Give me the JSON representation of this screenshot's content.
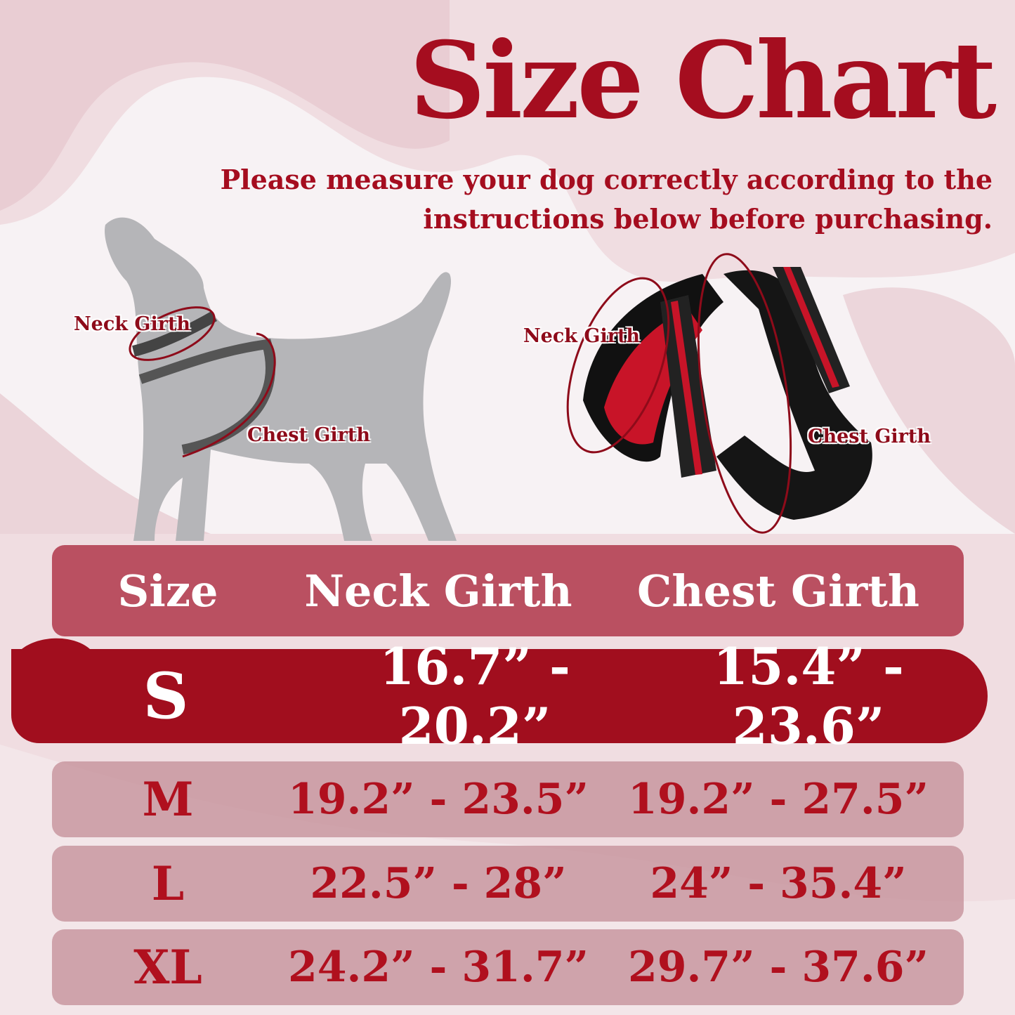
{
  "title": "Size Chart",
  "subtitle_line1": "Please measure your dog correctly according to the",
  "subtitle_line2": "instructions below before purchasing.",
  "dog_labels": {
    "neck": "Neck Girth",
    "chest": "Chest Girth"
  },
  "harness_labels": {
    "neck": "Neck Girth",
    "chest": "Chest Girth"
  },
  "colors": {
    "accent": "#a50d1f",
    "highlight_row": "#a10e1e",
    "row": "#d4a6ad",
    "background": "#f0dde1"
  },
  "table": {
    "headers": [
      "Size",
      "Neck Girth",
      "Chest Girth"
    ],
    "highlighted": {
      "size": "S",
      "neck": "16.7” - 20.2”",
      "chest": "15.4” - 23.6”"
    },
    "rows": [
      {
        "size": "M",
        "neck": "19.2” - 23.5”",
        "chest": "19.2” - 27.5”"
      },
      {
        "size": "L",
        "neck": "22.5” - 28”",
        "chest": "24” - 35.4”"
      },
      {
        "size": "XL",
        "neck": "24.2” - 31.7”",
        "chest": "29.7” - 37.6”"
      }
    ]
  }
}
